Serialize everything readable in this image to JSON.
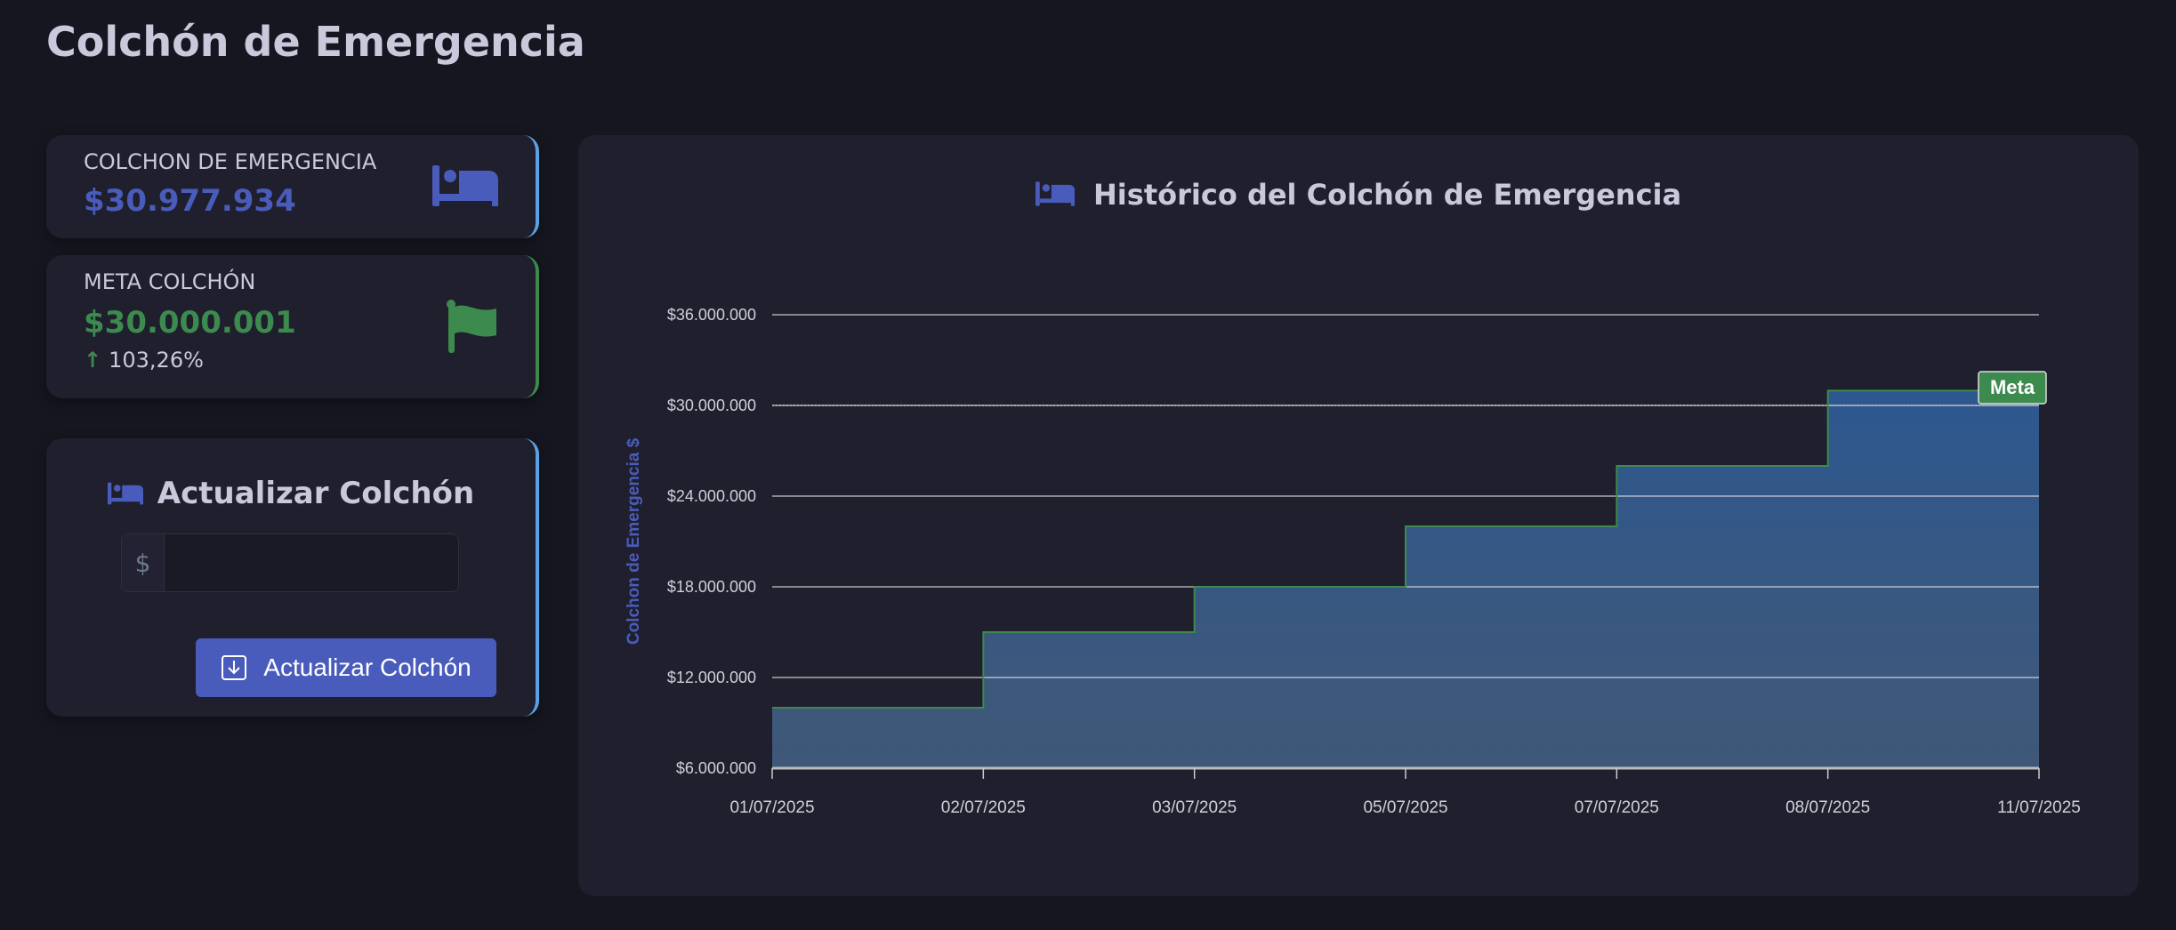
{
  "page": {
    "title": "Colchón de Emergencia"
  },
  "cards": [
    {
      "label": "COLCHON DE EMERGENCIA",
      "value": "$30.977.934",
      "icon": "bed-icon",
      "color": "#4a5cbb"
    },
    {
      "label": "META COLCHÓN",
      "value": "$30.000.001",
      "change": "103,26%",
      "icon": "flag-icon",
      "color": "#3d8a4f"
    }
  ],
  "update": {
    "title": "Actualizar Colchón",
    "prefix": "$",
    "value": "",
    "placeholder": "",
    "button": "Actualizar Colchón"
  },
  "chart_data": {
    "type": "line",
    "step": true,
    "title": "Histórico del Colchón de Emergencia",
    "ylabel": "Colchon de Emergencia $",
    "xlabel": "",
    "categories": [
      "01/07/2025",
      "02/07/2025",
      "03/07/2025",
      "05/07/2025",
      "07/07/2025",
      "08/07/2025",
      "11/07/2025"
    ],
    "values": [
      10000000,
      15000000,
      18000000,
      22000000,
      26000000,
      30977934,
      30977934
    ],
    "ylim": [
      6000000,
      36000000
    ],
    "yticks": [
      6000000,
      12000000,
      18000000,
      24000000,
      30000000,
      36000000
    ],
    "ytick_labels": [
      "$6.000.000",
      "$12.000.000",
      "$18.000.000",
      "$24.000.000",
      "$30.000.000",
      "$36.000.000"
    ],
    "annotation": {
      "label": "Meta",
      "value": 30000001
    },
    "line_color": "#3d8a4f",
    "fill_color": "#2d5a94",
    "grid": true
  }
}
